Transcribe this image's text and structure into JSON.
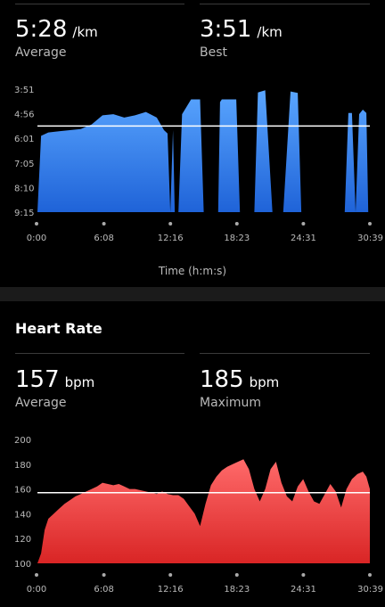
{
  "pace": {
    "average": {
      "value": "5:28",
      "unit": "/km",
      "label": "Average"
    },
    "best": {
      "value": "3:51",
      "unit": "/km",
      "label": "Best"
    },
    "x_axis_title": "Time (h:m:s)"
  },
  "heart_rate": {
    "title": "Heart Rate",
    "average": {
      "value": "157",
      "unit": "bpm",
      "label": "Average"
    },
    "maximum": {
      "value": "185",
      "unit": "bpm",
      "label": "Maximum"
    }
  },
  "colors": {
    "pace_fill": "#2f86e8",
    "hr_fill": "#e63a3a",
    "avg_line": "#ffffff"
  },
  "chart_data": [
    {
      "type": "area",
      "ylabel": "",
      "xlabel": "Time (h:m:s)",
      "x_ticks": [
        "0:00",
        "6:08",
        "12:16",
        "18:23",
        "24:31",
        "30:39"
      ],
      "y_ticks": [
        "3:51",
        "4:56",
        "6:01",
        "7:05",
        "8:10",
        "9:15"
      ],
      "y_axis_inverted": true,
      "ylim_seconds_per_km": [
        231,
        555
      ],
      "xlim_seconds": [
        0,
        1839
      ],
      "average_line": "5:28",
      "series": [
        {
          "x_seconds": [
            0,
            20,
            60,
            120,
            180,
            240,
            300,
            360,
            420,
            480,
            540,
            600,
            660,
            700,
            720,
            735,
            750,
            760,
            780,
            800,
            850,
            900,
            920,
            940,
            980,
            1000,
            1010,
            1020,
            1050,
            1070,
            1090,
            1100,
            1120,
            1160,
            1200,
            1220,
            1260,
            1300,
            1330,
            1360,
            1400,
            1440,
            1460,
            1480,
            1500,
            1520,
            1540,
            1560,
            1580,
            1600,
            1620,
            1640,
            1660,
            1700,
            1720,
            1740,
            1760,
            1780,
            1800,
            1820,
            1830,
            1839
          ],
          "pace_seconds_per_km": [
            555,
            354,
            345,
            342,
            339,
            336,
            324,
            300,
            297,
            306,
            300,
            291,
            306,
            339,
            348,
            555,
            339,
            555,
            555,
            297,
            258,
            258,
            555,
            555,
            555,
            555,
            265,
            258,
            258,
            258,
            258,
            258,
            555,
            555,
            555,
            240,
            234,
            555,
            555,
            555,
            237,
            241,
            555,
            555,
            555,
            555,
            555,
            555,
            555,
            555,
            555,
            555,
            555,
            555,
            294,
            294,
            555,
            297,
            285,
            294,
            555,
            555
          ]
        }
      ]
    },
    {
      "type": "area",
      "ylabel": "",
      "xlabel": "",
      "x_ticks": [
        "0:00",
        "6:08",
        "12:16",
        "18:23",
        "24:31",
        "30:39"
      ],
      "y_ticks": [
        200,
        180,
        160,
        140,
        120,
        100
      ],
      "ylim": [
        100,
        200
      ],
      "xlim_seconds": [
        0,
        1839
      ],
      "average_line": 157,
      "series": [
        {
          "x_seconds": [
            0,
            20,
            40,
            60,
            90,
            120,
            150,
            180,
            210,
            240,
            270,
            300,
            330,
            360,
            390,
            420,
            450,
            480,
            510,
            540,
            570,
            600,
            630,
            660,
            690,
            720,
            750,
            780,
            810,
            840,
            870,
            900,
            930,
            960,
            990,
            1020,
            1050,
            1080,
            1110,
            1140,
            1170,
            1200,
            1230,
            1260,
            1290,
            1320,
            1350,
            1380,
            1410,
            1440,
            1470,
            1500,
            1530,
            1560,
            1590,
            1620,
            1650,
            1680,
            1710,
            1740,
            1770,
            1800,
            1820,
            1839
          ],
          "bpm": [
            100,
            108,
            127,
            136,
            140,
            144,
            148,
            151,
            154,
            156,
            158,
            160,
            162,
            165,
            164,
            163,
            164,
            162,
            160,
            160,
            159,
            158,
            157,
            156,
            158,
            156,
            155,
            155,
            152,
            146,
            140,
            130,
            148,
            163,
            170,
            175,
            178,
            180,
            182,
            184,
            176,
            160,
            150,
            160,
            176,
            182,
            165,
            154,
            150,
            162,
            168,
            158,
            150,
            148,
            156,
            164,
            158,
            145,
            160,
            168,
            172,
            174,
            170,
            160
          ]
        }
      ]
    }
  ]
}
